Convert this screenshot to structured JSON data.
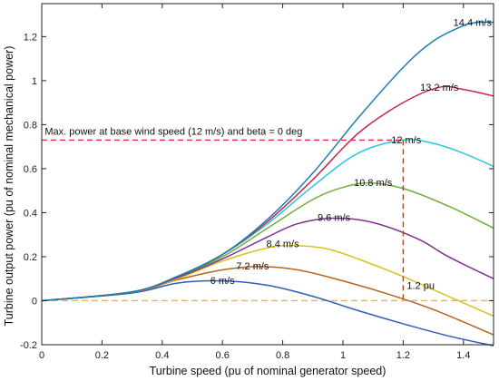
{
  "chart_data": {
    "type": "line",
    "xlabel": "Turbine speed (pu of nominal generator speed)",
    "ylabel": "Turbine output power (pu of nominal mechanical power)",
    "xlim": [
      0,
      1.5
    ],
    "ylim": [
      -0.2,
      1.35
    ],
    "xticks": [
      "0",
      "0.2",
      "0.4",
      "0.6",
      "0.8",
      "1",
      "1.2",
      "1.4"
    ],
    "yticks": [
      "-0.2",
      "0",
      "0.2",
      "0.4",
      "0.6",
      "0.8",
      "1",
      "1.2"
    ],
    "xtick_values": [
      0,
      0.2,
      0.4,
      0.6,
      0.8,
      1.0,
      1.2,
      1.4
    ],
    "ytick_values": [
      -0.2,
      0,
      0.2,
      0.4,
      0.6,
      0.8,
      1.0,
      1.2
    ],
    "grid": false,
    "series": [
      {
        "name": "6 m/s",
        "color": "#2e5fb8",
        "x": [
          0,
          0.3,
          0.45,
          0.6,
          0.75,
          0.9,
          1.05,
          1.2,
          1.35,
          1.5
        ],
        "y": [
          0,
          0.035,
          0.08,
          0.09,
          0.07,
          0.02,
          -0.045,
          -0.105,
          -0.16,
          -0.205
        ],
        "label_at": [
          0.6,
          0.092
        ]
      },
      {
        "name": "7.2 m/s",
        "color": "#b8641c",
        "x": [
          0,
          0.3,
          0.45,
          0.6,
          0.72,
          0.85,
          1.0,
          1.15,
          1.3,
          1.5
        ],
        "y": [
          0,
          0.038,
          0.095,
          0.14,
          0.155,
          0.14,
          0.09,
          0.03,
          -0.04,
          -0.155
        ],
        "label_at": [
          0.7,
          0.158
        ]
      },
      {
        "name": "8.4 m/s",
        "color": "#d9c21f",
        "x": [
          0,
          0.3,
          0.45,
          0.6,
          0.75,
          0.85,
          0.95,
          1.05,
          1.2,
          1.35,
          1.5
        ],
        "y": [
          0,
          0.04,
          0.1,
          0.18,
          0.24,
          0.25,
          0.235,
          0.19,
          0.11,
          0.02,
          -0.07
        ],
        "label_at": [
          0.8,
          0.26
        ]
      },
      {
        "name": "9.6 m/s",
        "color": "#7e2f8e",
        "x": [
          0,
          0.3,
          0.45,
          0.6,
          0.75,
          0.85,
          0.97,
          1.1,
          1.25,
          1.35,
          1.5
        ],
        "y": [
          0,
          0.04,
          0.105,
          0.19,
          0.29,
          0.35,
          0.375,
          0.355,
          0.28,
          0.2,
          0.1
        ],
        "label_at": [
          0.97,
          0.38
        ]
      },
      {
        "name": "10.8 m/s",
        "color": "#6fae3a",
        "x": [
          0,
          0.3,
          0.45,
          0.6,
          0.75,
          0.9,
          1.0,
          1.09,
          1.2,
          1.35,
          1.5
        ],
        "y": [
          0,
          0.04,
          0.11,
          0.2,
          0.33,
          0.46,
          0.515,
          0.535,
          0.51,
          0.43,
          0.33
        ],
        "label_at": [
          1.1,
          0.538
        ]
      },
      {
        "name": "12 m/s",
        "color": "#28c8dc",
        "x": [
          0,
          0.3,
          0.45,
          0.6,
          0.75,
          0.9,
          1.05,
          1.2,
          1.3,
          1.4,
          1.5
        ],
        "y": [
          0,
          0.04,
          0.11,
          0.21,
          0.35,
          0.52,
          0.67,
          0.73,
          0.715,
          0.67,
          0.61
        ],
        "label_at": [
          1.21,
          0.732
        ]
      },
      {
        "name": "13.2 m/s",
        "color": "#c8284a",
        "x": [
          0,
          0.3,
          0.45,
          0.6,
          0.75,
          0.9,
          1.05,
          1.2,
          1.32,
          1.4,
          1.5
        ],
        "y": [
          0,
          0.04,
          0.11,
          0.21,
          0.36,
          0.55,
          0.76,
          0.9,
          0.97,
          0.96,
          0.93
        ],
        "label_at": [
          1.32,
          0.97
        ]
      },
      {
        "name": "14.4 m/s",
        "color": "#1b7fb0",
        "x": [
          0,
          0.3,
          0.45,
          0.6,
          0.75,
          0.9,
          1.05,
          1.2,
          1.3,
          1.4,
          1.45,
          1.5
        ],
        "y": [
          0,
          0.04,
          0.11,
          0.21,
          0.37,
          0.58,
          0.83,
          1.06,
          1.18,
          1.25,
          1.265,
          1.265
        ],
        "label_at": [
          1.43,
          1.265
        ]
      }
    ],
    "annotations": {
      "max_power_text": "Max. power at base wind speed (12 m/s) and beta = 0 deg",
      "max_power_y": 0.73,
      "max_power_x": 1.2,
      "max_power_line_color": "#e8283a",
      "speed_text": "1.2 pu",
      "speed_line_color": "#9a4a1e",
      "zero_line_color": "#e6c020"
    }
  }
}
